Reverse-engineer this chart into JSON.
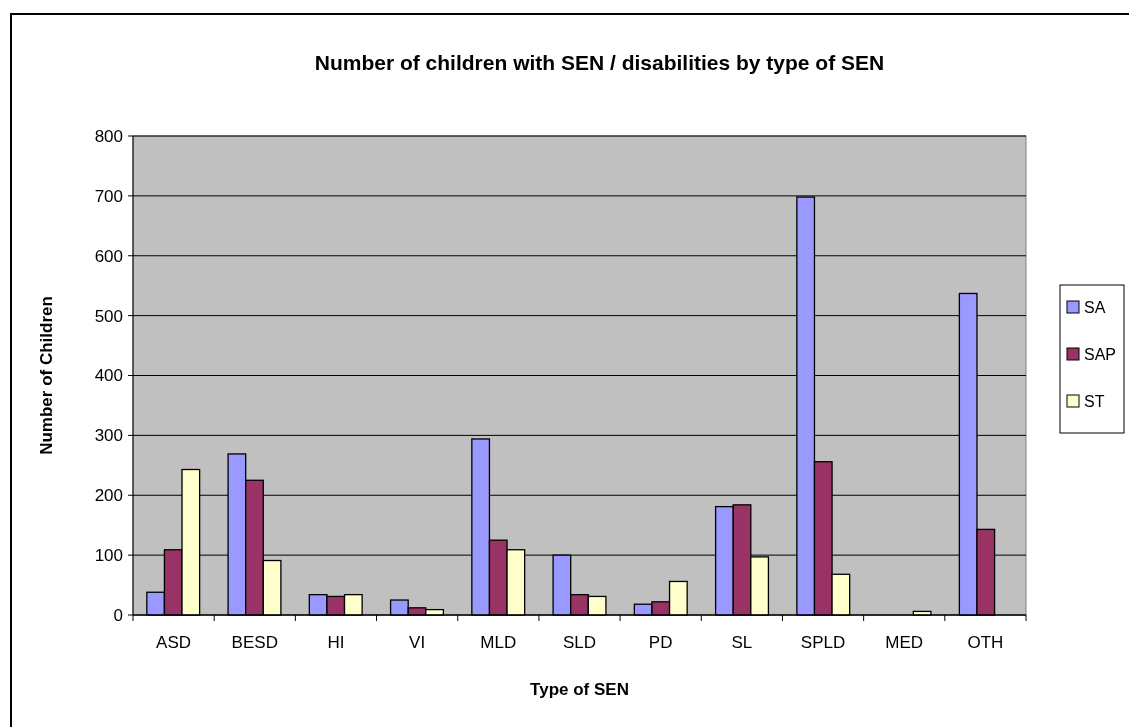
{
  "chart_data": {
    "type": "bar",
    "title": "Number of children with SEN / disabilities by type of SEN",
    "xlabel": "Type of SEN",
    "ylabel": "Number of Children",
    "categories": [
      "ASD",
      "BESD",
      "HI",
      "VI",
      "MLD",
      "SLD",
      "PD",
      "SL",
      "SPLD",
      "MED",
      "OTH"
    ],
    "series": [
      {
        "name": "SA",
        "color": "#9999ff",
        "values": [
          38,
          269,
          34,
          25,
          294,
          100,
          18,
          181,
          698,
          0,
          537
        ]
      },
      {
        "name": "SAP",
        "color": "#993366",
        "values": [
          109,
          225,
          31,
          12,
          125,
          34,
          22,
          184,
          256,
          0,
          143
        ]
      },
      {
        "name": "ST",
        "color": "#ffffcc",
        "values": [
          243,
          91,
          34,
          9,
          109,
          31,
          56,
          97,
          68,
          6,
          0
        ]
      }
    ],
    "ylim": [
      0,
      800
    ],
    "yticks": [
      0,
      100,
      200,
      300,
      400,
      500,
      600,
      700,
      800
    ],
    "grid": "y",
    "legend": "right"
  }
}
